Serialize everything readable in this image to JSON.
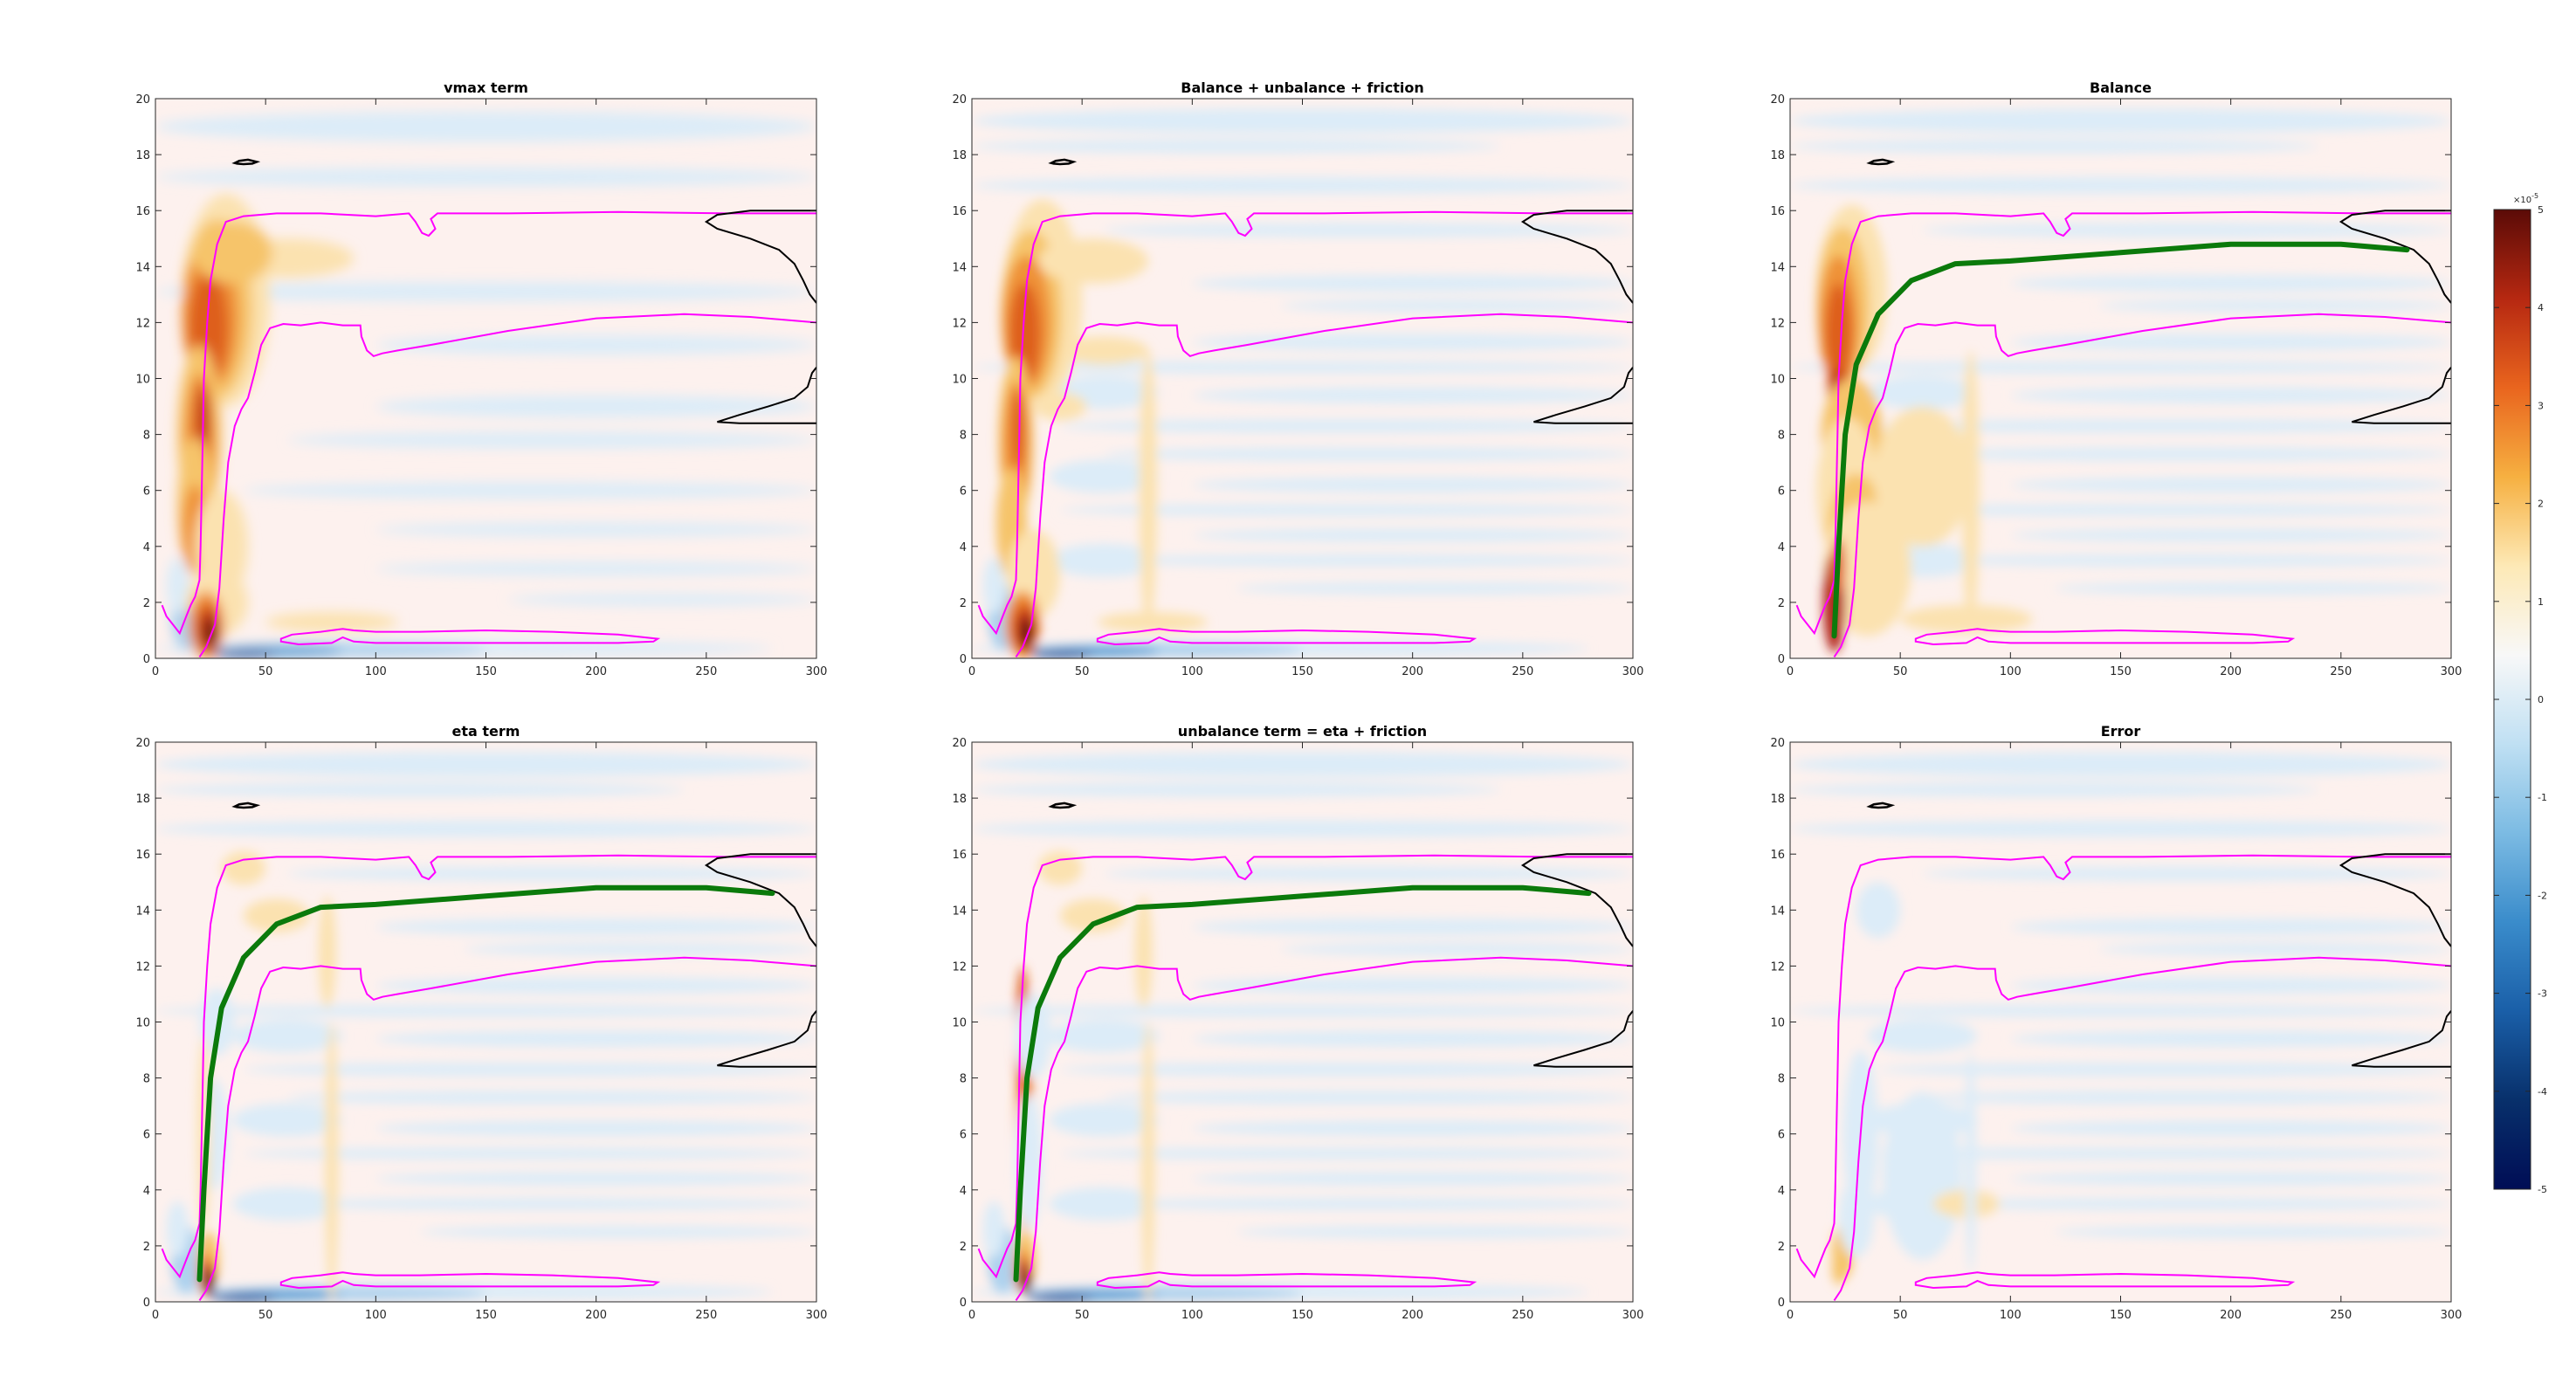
{
  "figure": {
    "background": "#ffffff"
  },
  "chart_data": [
    {
      "type": "heatmap",
      "title": "vmax term",
      "xlim": [
        0,
        300
      ],
      "ylim": [
        0,
        20
      ],
      "xticks": [
        0,
        50,
        100,
        150,
        200,
        250,
        300
      ],
      "yticks": [
        0,
        2,
        4,
        6,
        8,
        10,
        12,
        14,
        16,
        18,
        20
      ],
      "pattern": "vmax",
      "green_curve": false
    },
    {
      "type": "heatmap",
      "title": "Balance + unbalance + friction",
      "xlim": [
        0,
        300
      ],
      "ylim": [
        0,
        20
      ],
      "xticks": [
        0,
        50,
        100,
        150,
        200,
        250,
        300
      ],
      "yticks": [
        0,
        2,
        4,
        6,
        8,
        10,
        12,
        14,
        16,
        18,
        20
      ],
      "pattern": "total",
      "green_curve": false
    },
    {
      "type": "heatmap",
      "title": "Balance",
      "xlim": [
        0,
        300
      ],
      "ylim": [
        0,
        20
      ],
      "xticks": [
        0,
        50,
        100,
        150,
        200,
        250,
        300
      ],
      "yticks": [
        0,
        2,
        4,
        6,
        8,
        10,
        12,
        14,
        16,
        18,
        20
      ],
      "pattern": "balance",
      "green_curve": true
    },
    {
      "type": "heatmap",
      "title": "eta term",
      "xlim": [
        0,
        300
      ],
      "ylim": [
        0,
        20
      ],
      "xticks": [
        0,
        50,
        100,
        150,
        200,
        250,
        300
      ],
      "yticks": [
        0,
        2,
        4,
        6,
        8,
        10,
        12,
        14,
        16,
        18,
        20
      ],
      "pattern": "eta",
      "green_curve": true
    },
    {
      "type": "heatmap",
      "title": "unbalance term = eta + friction",
      "xlim": [
        0,
        300
      ],
      "ylim": [
        0,
        20
      ],
      "xticks": [
        0,
        50,
        100,
        150,
        200,
        250,
        300
      ],
      "yticks": [
        0,
        2,
        4,
        6,
        8,
        10,
        12,
        14,
        16,
        18,
        20
      ],
      "pattern": "unbalance",
      "green_curve": true
    },
    {
      "type": "heatmap",
      "title": "Error",
      "xlim": [
        0,
        300
      ],
      "ylim": [
        0,
        20
      ],
      "xticks": [
        0,
        50,
        100,
        150,
        200,
        250,
        300
      ],
      "yticks": [
        0,
        2,
        4,
        6,
        8,
        10,
        12,
        14,
        16,
        18,
        20
      ],
      "pattern": "error",
      "green_curve": false
    }
  ],
  "colorbar": {
    "ticks": [
      5,
      4,
      3,
      2,
      1,
      0,
      -1,
      -2,
      -3,
      -4,
      -5
    ],
    "exponent_base": "×10",
    "exponent_power": "-5",
    "range": [
      -5,
      5
    ],
    "colors": [
      "#000d55",
      "#08306b",
      "#1a5fa8",
      "#3a8ccb",
      "#7cbbe3",
      "#c0e0f3",
      "#f8f8f8",
      "#fde9b6",
      "#f6b041",
      "#e9651e",
      "#b62811",
      "#5b0b07"
    ]
  },
  "overlays": {
    "magenta": "#ff00ff",
    "green": "#0b7a0b",
    "black": "#000000",
    "green_curve_points": [
      [
        20,
        0.8
      ],
      [
        22,
        4
      ],
      [
        25,
        8
      ],
      [
        30,
        10.5
      ],
      [
        40,
        12.3
      ],
      [
        55,
        13.5
      ],
      [
        75,
        14.1
      ],
      [
        100,
        14.2
      ],
      [
        150,
        14.5
      ],
      [
        200,
        14.8
      ],
      [
        250,
        14.8
      ],
      [
        280,
        14.6
      ]
    ]
  }
}
